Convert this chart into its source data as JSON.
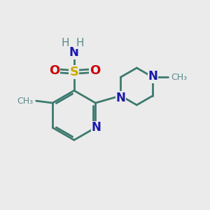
{
  "bg_color": "#ebebeb",
  "bond_color": "#3d7a6e",
  "N_color": "#1a1aaa",
  "O_color": "#cc0000",
  "S_color": "#ccaa00",
  "H_color": "#5a8a8a",
  "line_width": 2.0,
  "figsize": [
    3.0,
    3.0
  ],
  "dpi": 100,
  "xlim": [
    0,
    10
  ],
  "ylim": [
    0,
    10
  ]
}
